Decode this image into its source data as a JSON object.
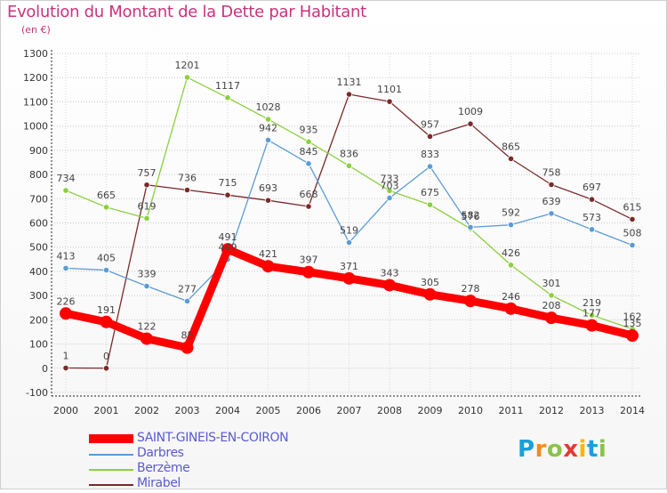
{
  "chart_data": {
    "type": "line",
    "title": "Evolution du Montant de la Dette par Habitant",
    "unit_label": "(en €)",
    "categories": [
      "2000",
      "2001",
      "2002",
      "2003",
      "2004",
      "2005",
      "2006",
      "2007",
      "2008",
      "2009",
      "2010",
      "2011",
      "2012",
      "2013",
      "2014"
    ],
    "ylim": [
      -100,
      1300
    ],
    "yticks": [
      "-100",
      "0",
      "100",
      "200",
      "300",
      "400",
      "500",
      "600",
      "700",
      "800",
      "900",
      "1000",
      "1100",
      "1200",
      "1300"
    ],
    "grid": true,
    "legend_position": "bottom-left",
    "series": [
      {
        "name": "SAINT-GINEIS-EN-COIRON",
        "color": "#ff0000",
        "values": [
          226,
          191,
          122,
          85,
          491,
          421,
          397,
          371,
          343,
          305,
          278,
          246,
          208,
          177,
          135
        ],
        "labels": [
          "226",
          "191",
          "122",
          "85",
          "491",
          "421",
          "397",
          "371",
          "343",
          "305",
          "278",
          "246",
          "208",
          "177",
          "135"
        ]
      },
      {
        "name": "Darbres",
        "color": "#5b9bd5",
        "values": [
          413,
          405,
          339,
          277,
          449,
          942,
          845,
          519,
          703,
          833,
          582,
          592,
          639,
          573,
          508
        ],
        "labels": [
          "413",
          "405",
          "339",
          "277",
          "449",
          "942",
          "845",
          "519",
          "703",
          "833",
          "582",
          "592",
          "639",
          "573",
          "508"
        ]
      },
      {
        "name": "Berzème",
        "color": "#8ccf3f",
        "values": [
          734,
          665,
          619,
          1201,
          1117,
          1028,
          935,
          836,
          733,
          675,
          576,
          426,
          301,
          219,
          162
        ],
        "labels": [
          "734",
          "665",
          "619",
          "1201",
          "1117",
          "1028",
          "935",
          "836",
          "733",
          "675",
          "576",
          "426",
          "301",
          "219",
          "162"
        ]
      },
      {
        "name": "Mirabel",
        "color": "#7b2a2a",
        "values": [
          1,
          0,
          757,
          736,
          715,
          693,
          668,
          1131,
          1101,
          957,
          1009,
          865,
          758,
          697,
          615
        ],
        "labels": [
          "1",
          "0",
          "757",
          "736",
          "715",
          "693",
          "668",
          "1131",
          "1101",
          "957",
          "1009",
          "865",
          "758",
          "697",
          "615"
        ]
      }
    ]
  },
  "brand": {
    "letters": [
      "P",
      "r",
      "o",
      "x",
      "i",
      "t",
      "i"
    ],
    "colors": [
      "#1aa0d8",
      "#f28c1e",
      "#8bc34a",
      "#e53935",
      "#f6b800",
      "#1aa0d8",
      "#8bc34a"
    ]
  }
}
